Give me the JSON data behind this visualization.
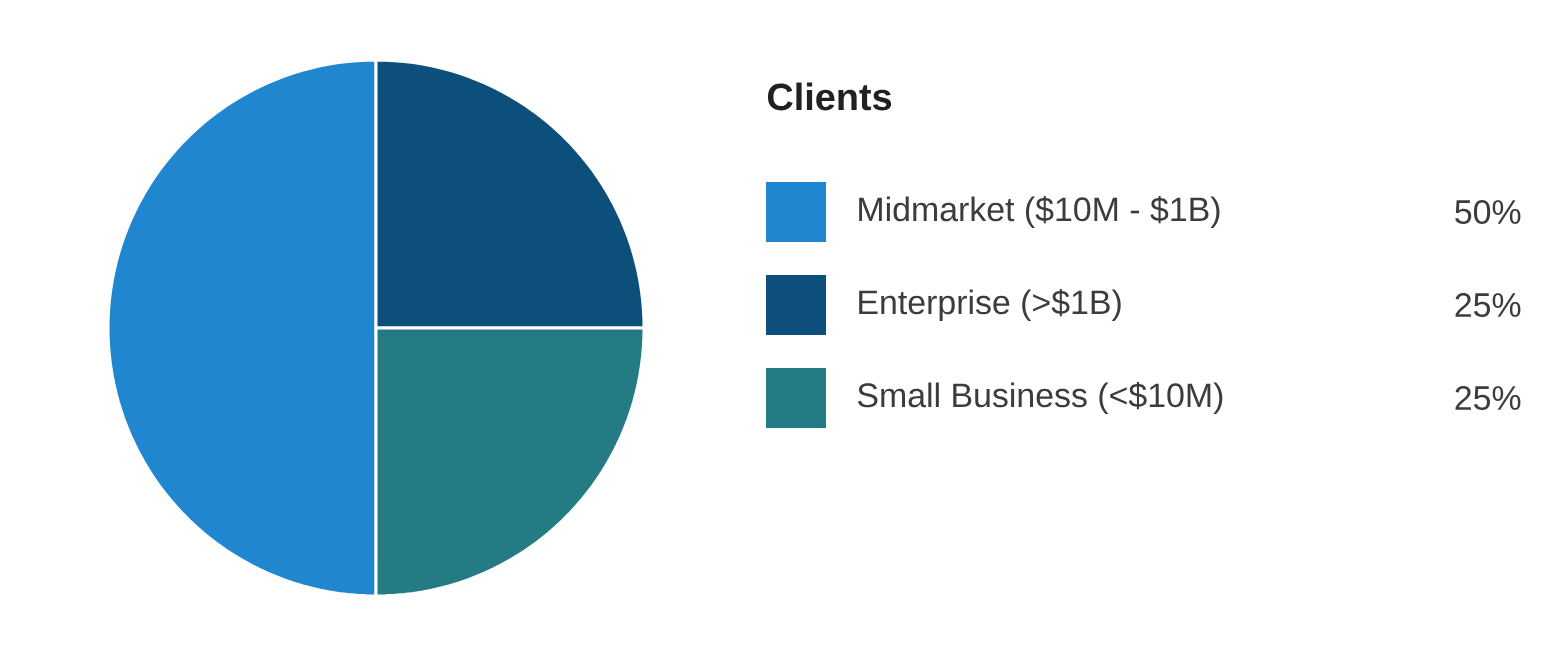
{
  "chart_data": {
    "type": "pie",
    "legend_title": "Clients",
    "categories": [
      "Midmarket ($10M - $1B)",
      "Enterprise (>$1B)",
      "Small Business (<$10M)"
    ],
    "values": [
      50,
      25,
      25
    ],
    "colors": [
      "#1f86cf",
      "#0b4f7a",
      "#257b84"
    ],
    "value_labels": [
      "50%",
      "25%",
      "25%"
    ],
    "legend": "right"
  }
}
